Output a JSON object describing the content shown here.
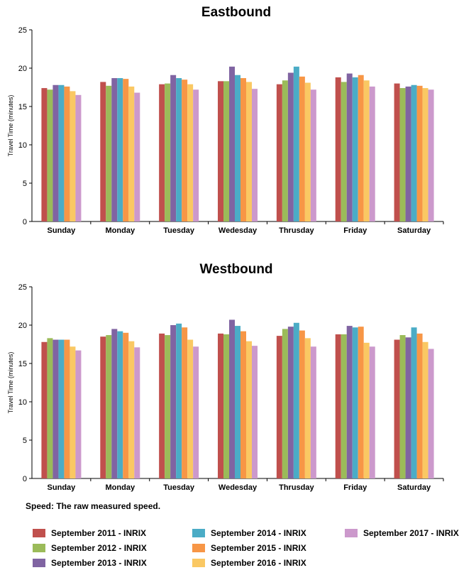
{
  "chart_data": [
    {
      "type": "bar",
      "title": "Eastbound",
      "ylabel": "Travel Time (minutes)",
      "ylim": [
        0,
        25
      ],
      "yticks": [
        "0",
        "5",
        "10",
        "15",
        "20",
        "25"
      ],
      "categories": [
        "Sunday",
        "Monday",
        "Tuesday",
        "Wedesday",
        "Thrusday",
        "Friday",
        "Saturday"
      ],
      "series": [
        {
          "name": "September 2011 - INRIX",
          "values": [
            17.4,
            18.2,
            17.9,
            18.3,
            17.9,
            18.8,
            18.0
          ]
        },
        {
          "name": "September 2012 - INRIX",
          "values": [
            17.2,
            17.7,
            18.0,
            18.3,
            18.4,
            18.2,
            17.4
          ]
        },
        {
          "name": "September 2013 - INRIX",
          "values": [
            17.8,
            18.7,
            19.1,
            20.2,
            19.4,
            19.3,
            17.6
          ]
        },
        {
          "name": "September 2014 - INRIX",
          "values": [
            17.8,
            18.7,
            18.7,
            19.1,
            20.2,
            18.8,
            17.8
          ]
        },
        {
          "name": "September 2015 - INRIX",
          "values": [
            17.6,
            18.6,
            18.5,
            18.7,
            18.9,
            19.1,
            17.7
          ]
        },
        {
          "name": "September 2016 - INRIX",
          "values": [
            17.0,
            17.6,
            17.9,
            18.2,
            18.1,
            18.4,
            17.4
          ]
        },
        {
          "name": "September 2017 - INRIX",
          "values": [
            16.5,
            16.8,
            17.2,
            17.3,
            17.2,
            17.6,
            17.2
          ]
        }
      ]
    },
    {
      "type": "bar",
      "title": "Westbound",
      "ylabel": "Travel Time (minutes)",
      "ylim": [
        0,
        25
      ],
      "yticks": [
        "0",
        "5",
        "10",
        "15",
        "20",
        "25"
      ],
      "categories": [
        "Sunday",
        "Monday",
        "Tuesday",
        "Wedesday",
        "Thrusday",
        "Friday",
        "Saturday"
      ],
      "series": [
        {
          "name": "September 2011 - INRIX",
          "values": [
            17.8,
            18.5,
            18.9,
            18.9,
            18.6,
            18.8,
            18.1
          ]
        },
        {
          "name": "September 2012 - INRIX",
          "values": [
            18.3,
            18.7,
            18.7,
            18.8,
            19.5,
            18.8,
            18.7
          ]
        },
        {
          "name": "September 2013 - INRIX",
          "values": [
            18.1,
            19.5,
            20.0,
            20.7,
            19.8,
            19.9,
            18.4
          ]
        },
        {
          "name": "September 2014 - INRIX",
          "values": [
            18.1,
            19.2,
            20.2,
            19.9,
            20.3,
            19.7,
            19.7
          ]
        },
        {
          "name": "September 2015 - INRIX",
          "values": [
            18.1,
            19.0,
            19.7,
            19.2,
            19.3,
            19.8,
            18.9
          ]
        },
        {
          "name": "September 2016 - INRIX",
          "values": [
            17.2,
            17.9,
            18.1,
            17.9,
            18.3,
            17.7,
            17.8
          ]
        },
        {
          "name": "September 2017 - INRIX",
          "values": [
            16.7,
            17.1,
            17.2,
            17.3,
            17.2,
            17.2,
            16.9
          ]
        }
      ]
    }
  ],
  "colors": [
    "#c0504d",
    "#9bbb59",
    "#8064a2",
    "#4bacc6",
    "#f79646",
    "#fac863",
    "#cc99cc"
  ],
  "note": "Speed: The raw measured speed.",
  "legend": [
    "September 2011 - INRIX",
    "September 2012 - INRIX",
    "September 2013 - INRIX",
    "September 2014 - INRIX",
    "September 2015 - INRIX",
    "September 2016 - INRIX",
    "September 2017 - INRIX"
  ]
}
